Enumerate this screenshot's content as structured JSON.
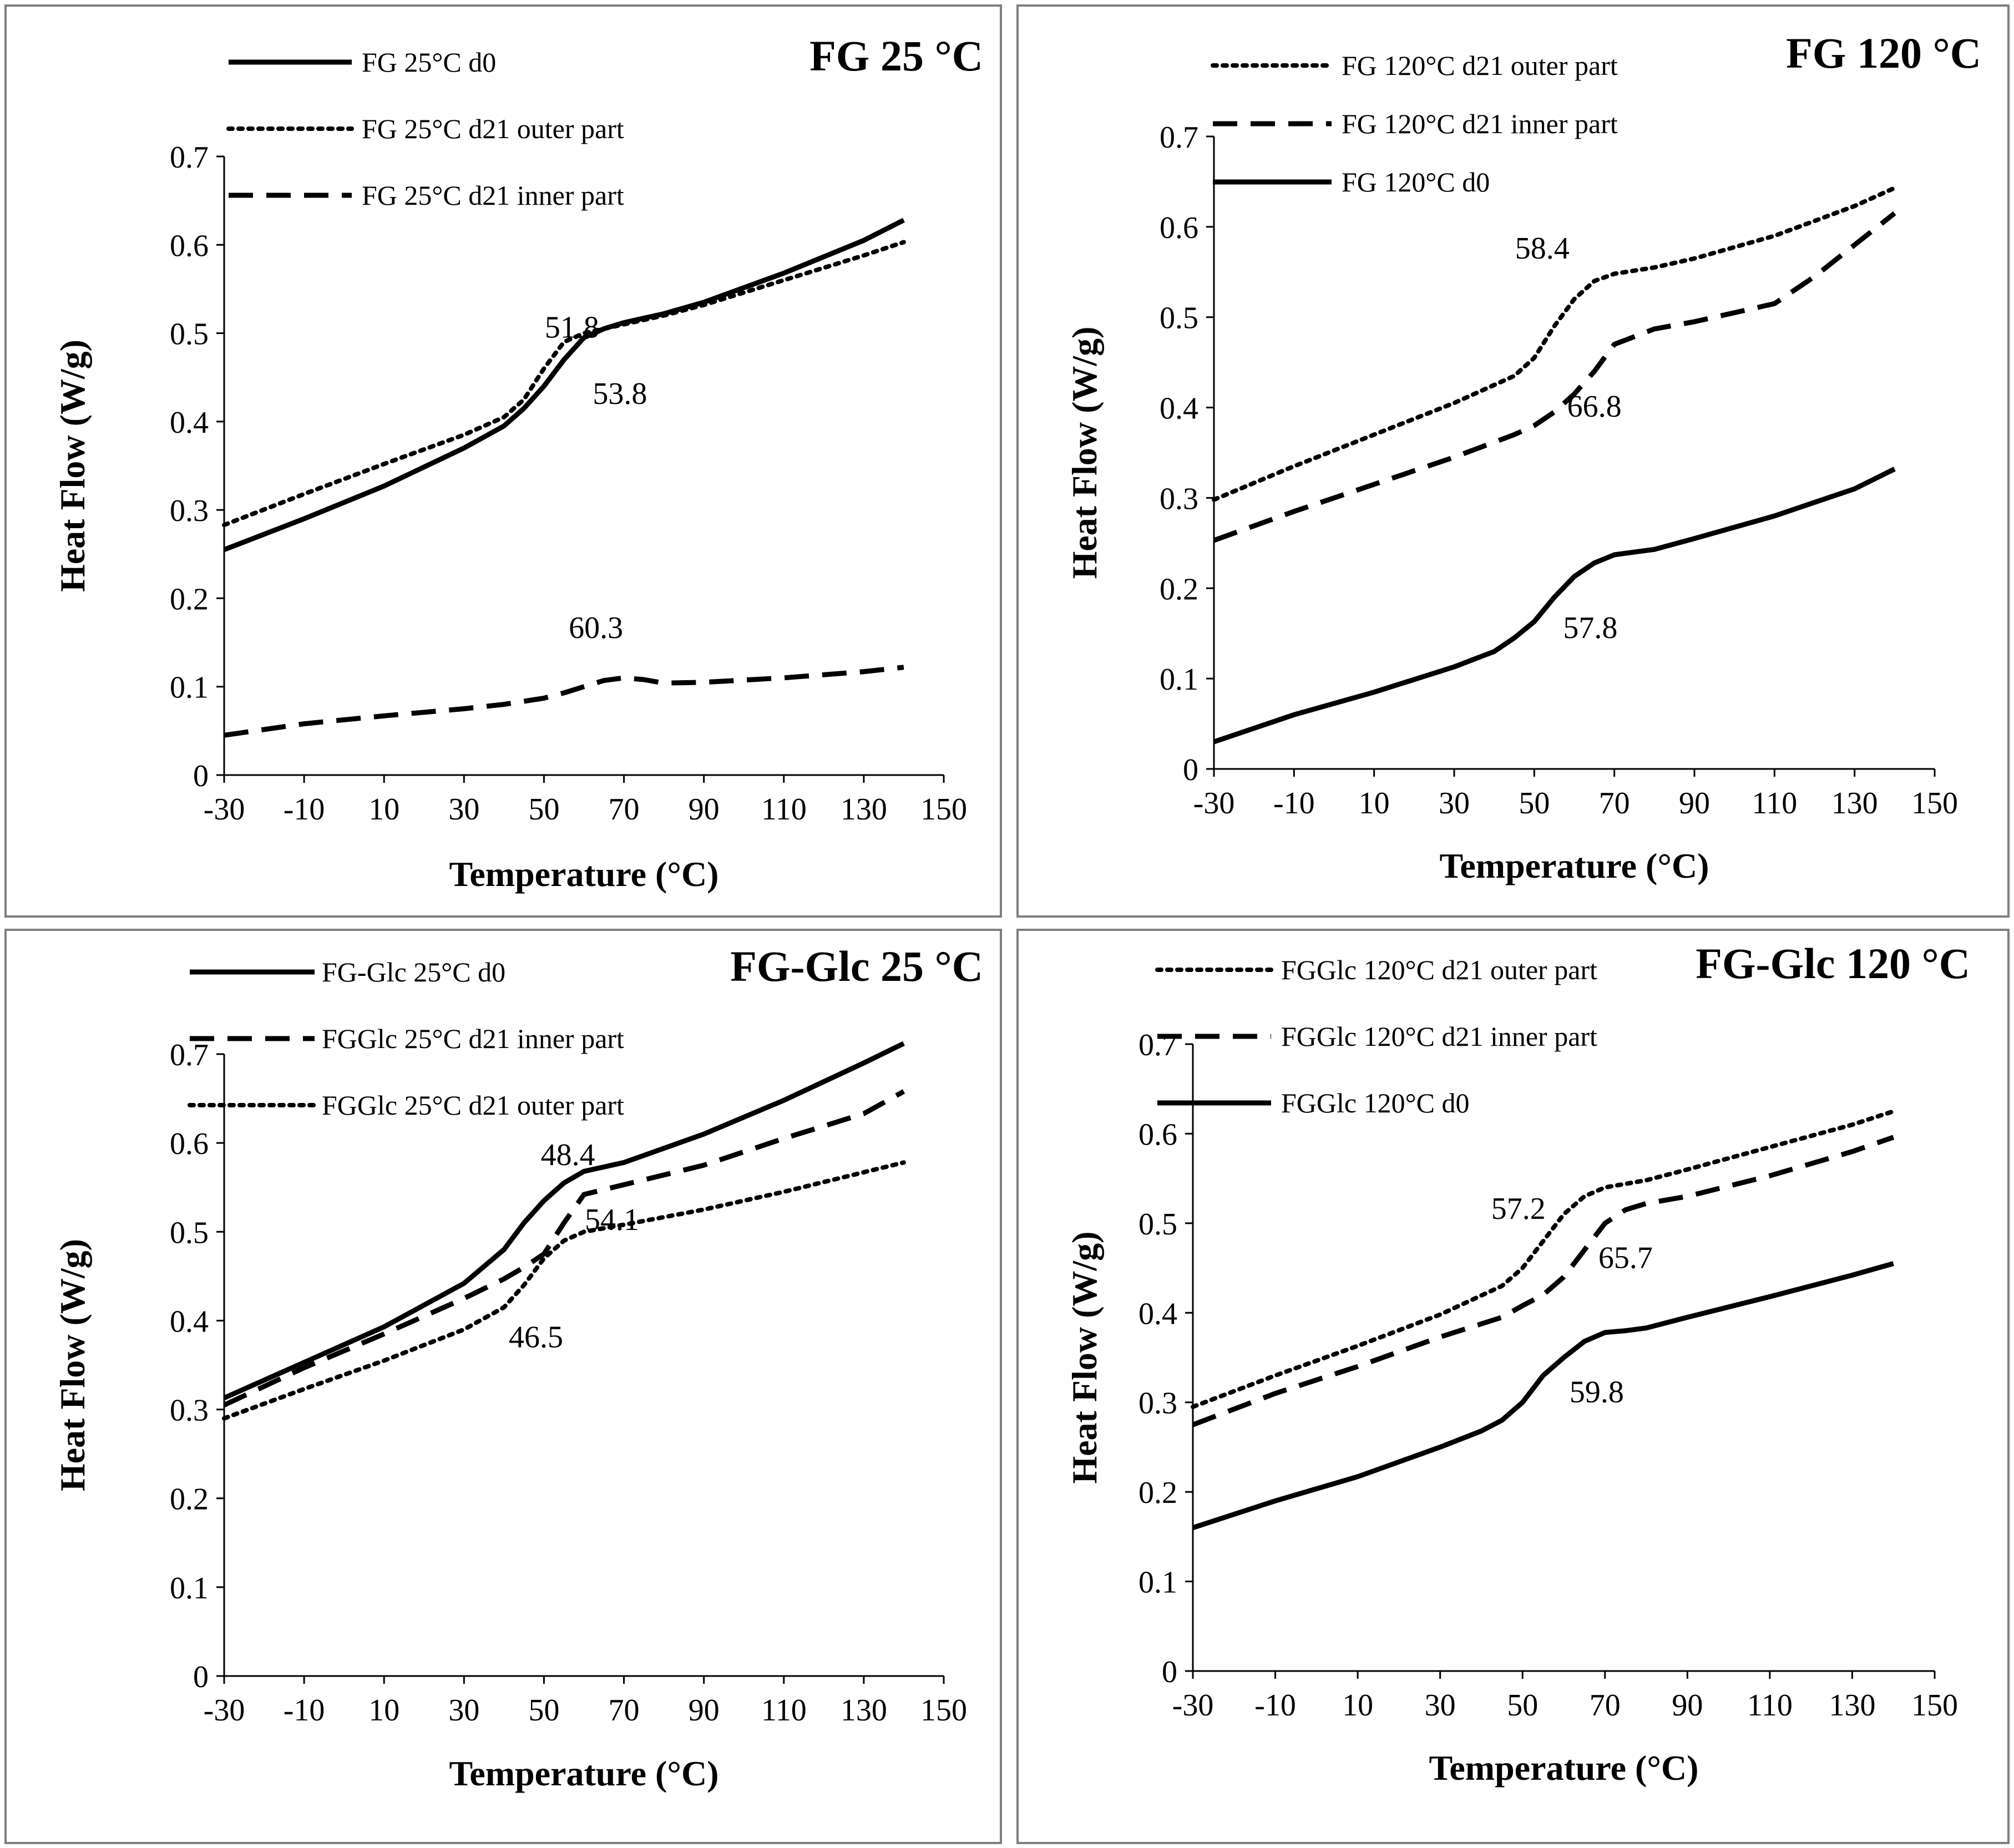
{
  "chart_data": [
    {
      "type": "line",
      "title": "FG 25 °C",
      "xlabel": "Temperature (°C)",
      "ylabel": "Heat Flow (W/g)",
      "xlim": [
        -30,
        150
      ],
      "ylim": [
        0,
        0.7
      ],
      "xticks": [
        -30,
        -10,
        10,
        30,
        50,
        70,
        90,
        110,
        130,
        150
      ],
      "xtick_labels": [
        "-30",
        "-10",
        "10",
        "30",
        "50",
        "70",
        "90",
        "110",
        "130",
        "150"
      ],
      "yticks": [
        0,
        0.1,
        0.2,
        0.3,
        0.4,
        0.5,
        0.6,
        0.7
      ],
      "ytick_labels": [
        "0",
        "0.1",
        "0.2",
        "0.3",
        "0.4",
        "0.5",
        "0.6",
        "0.7"
      ],
      "series": [
        {
          "name": "FG 25°C d0",
          "style": "solid",
          "x": [
            -30,
            -10,
            10,
            30,
            40,
            45,
            50,
            55,
            60,
            65,
            70,
            80,
            90,
            110,
            130,
            140
          ],
          "y": [
            0.255,
            0.29,
            0.327,
            0.37,
            0.395,
            0.415,
            0.44,
            0.47,
            0.495,
            0.505,
            0.512,
            0.522,
            0.535,
            0.568,
            0.605,
            0.628
          ]
        },
        {
          "name": "FG 25°C d21 outer part",
          "style": "dotted",
          "x": [
            -30,
            -10,
            10,
            30,
            40,
            45,
            50,
            55,
            60,
            70,
            80,
            90,
            110,
            130,
            140
          ],
          "y": [
            0.283,
            0.318,
            0.352,
            0.385,
            0.405,
            0.425,
            0.46,
            0.49,
            0.5,
            0.51,
            0.52,
            0.532,
            0.56,
            0.588,
            0.603
          ]
        },
        {
          "name": "FG 25°C d21 inner part",
          "style": "dashed",
          "x": [
            -30,
            -10,
            10,
            30,
            40,
            50,
            55,
            60,
            65,
            70,
            75,
            80,
            90,
            110,
            130,
            140
          ],
          "y": [
            0.045,
            0.058,
            0.067,
            0.075,
            0.08,
            0.087,
            0.093,
            0.1,
            0.107,
            0.11,
            0.108,
            0.104,
            0.105,
            0.11,
            0.117,
            0.122
          ]
        }
      ],
      "annotations": [
        {
          "text": "51.8",
          "x": 57,
          "y": 0.495
        },
        {
          "text": "53.8",
          "x": 69,
          "y": 0.42
        },
        {
          "text": "60.3",
          "x": 63,
          "y": 0.155
        }
      ]
    },
    {
      "type": "line",
      "title": "FG 120 °C",
      "xlabel": "Temperature (°C)",
      "ylabel": "Heat Flow (W/g)",
      "xlim": [
        -30,
        150
      ],
      "ylim": [
        0,
        0.7
      ],
      "xticks": [
        -30,
        -10,
        10,
        30,
        50,
        70,
        90,
        110,
        130,
        150
      ],
      "xtick_labels": [
        "-30",
        "-10",
        "10",
        "30",
        "50",
        "70",
        "90",
        "110",
        "130",
        "150"
      ],
      "yticks": [
        0,
        0.1,
        0.2,
        0.3,
        0.4,
        0.5,
        0.6,
        0.7
      ],
      "ytick_labels": [
        "0",
        "0.1",
        "0.2",
        "0.3",
        "0.4",
        "0.5",
        "0.6",
        "0.7"
      ],
      "series": [
        {
          "name": "FG 120°C d21 outer part",
          "style": "dotted",
          "x": [
            -30,
            -10,
            10,
            30,
            45,
            50,
            55,
            60,
            65,
            70,
            80,
            90,
            110,
            130,
            140
          ],
          "y": [
            0.298,
            0.335,
            0.37,
            0.405,
            0.435,
            0.455,
            0.49,
            0.52,
            0.54,
            0.548,
            0.555,
            0.565,
            0.59,
            0.623,
            0.643
          ]
        },
        {
          "name": "FG 120°C d21 inner part",
          "style": "dashed",
          "x": [
            -30,
            -10,
            10,
            30,
            45,
            50,
            55,
            60,
            65,
            70,
            80,
            90,
            100,
            110,
            120,
            130,
            140
          ],
          "y": [
            0.253,
            0.285,
            0.315,
            0.345,
            0.37,
            0.38,
            0.395,
            0.415,
            0.44,
            0.47,
            0.487,
            0.495,
            0.505,
            0.515,
            0.545,
            0.58,
            0.615
          ]
        },
        {
          "name": "FG 120°C d0",
          "style": "solid",
          "x": [
            -30,
            -10,
            10,
            30,
            40,
            45,
            50,
            55,
            60,
            65,
            70,
            75,
            80,
            90,
            110,
            130,
            140
          ],
          "y": [
            0.03,
            0.06,
            0.085,
            0.113,
            0.13,
            0.145,
            0.163,
            0.19,
            0.213,
            0.228,
            0.237,
            0.24,
            0.243,
            0.255,
            0.28,
            0.31,
            0.332
          ]
        }
      ],
      "annotations": [
        {
          "text": "58.4",
          "x": 52,
          "y": 0.565
        },
        {
          "text": "66.8",
          "x": 65,
          "y": 0.39
        },
        {
          "text": "57.8",
          "x": 64,
          "y": 0.145
        }
      ]
    },
    {
      "type": "line",
      "title": "FG-Glc 25 °C",
      "xlabel": "Temperature (°C)",
      "ylabel": "Heat Flow (W/g)",
      "xlim": [
        -30,
        150
      ],
      "ylim": [
        0,
        0.7
      ],
      "xticks": [
        -30,
        -10,
        10,
        30,
        50,
        70,
        90,
        110,
        130,
        150
      ],
      "xtick_labels": [
        "-30",
        "-10",
        "10",
        "30",
        "50",
        "70",
        "90",
        "110",
        "130",
        "150"
      ],
      "yticks": [
        0,
        0.1,
        0.2,
        0.3,
        0.4,
        0.5,
        0.6,
        0.7
      ],
      "ytick_labels": [
        "0",
        "0.1",
        "0.2",
        "0.3",
        "0.4",
        "0.5",
        "0.6",
        "0.7"
      ],
      "series": [
        {
          "name": "FG-Glc 25°C d0",
          "style": "solid",
          "x": [
            -30,
            -10,
            10,
            30,
            40,
            45,
            50,
            55,
            60,
            70,
            90,
            110,
            130,
            140
          ],
          "y": [
            0.313,
            0.353,
            0.393,
            0.442,
            0.48,
            0.51,
            0.535,
            0.555,
            0.568,
            0.578,
            0.61,
            0.648,
            0.69,
            0.712
          ]
        },
        {
          "name": "FGGlc 25°C d21 inner part",
          "style": "dashed",
          "x": [
            -30,
            -10,
            10,
            30,
            40,
            45,
            50,
            55,
            60,
            70,
            90,
            110,
            130,
            140
          ],
          "y": [
            0.305,
            0.347,
            0.385,
            0.425,
            0.447,
            0.46,
            0.475,
            0.51,
            0.542,
            0.553,
            0.575,
            0.605,
            0.633,
            0.658
          ]
        },
        {
          "name": "FGGlc 25°C d21 outer part",
          "style": "dotted",
          "x": [
            -30,
            -10,
            10,
            30,
            40,
            45,
            50,
            55,
            60,
            70,
            90,
            110,
            130,
            140
          ],
          "y": [
            0.29,
            0.323,
            0.355,
            0.39,
            0.415,
            0.44,
            0.47,
            0.49,
            0.5,
            0.508,
            0.525,
            0.545,
            0.567,
            0.578
          ]
        }
      ],
      "annotations": [
        {
          "text": "48.4",
          "x": 56,
          "y": 0.575
        },
        {
          "text": "54.1",
          "x": 67,
          "y": 0.502
        },
        {
          "text": "46.5",
          "x": 48,
          "y": 0.37
        }
      ]
    },
    {
      "type": "line",
      "title": "FG-Glc 120 °C",
      "xlabel": "Temperature (°C)",
      "ylabel": "Heat Flow (W/g)",
      "xlim": [
        -30,
        150
      ],
      "ylim": [
        0,
        0.7
      ],
      "xticks": [
        -30,
        -10,
        10,
        30,
        50,
        70,
        90,
        110,
        130,
        150
      ],
      "xtick_labels": [
        "-30",
        "-10",
        "10",
        "30",
        "50",
        "70",
        "90",
        "110",
        "130",
        "150"
      ],
      "yticks": [
        0,
        0.1,
        0.2,
        0.3,
        0.4,
        0.5,
        0.6,
        0.7
      ],
      "ytick_labels": [
        "0",
        "0.1",
        "0.2",
        "0.3",
        "0.4",
        "0.5",
        "0.6",
        "0.7"
      ],
      "series": [
        {
          "name": "FGGlc 120°C d21 outer part",
          "style": "dotted",
          "x": [
            -30,
            -10,
            10,
            30,
            45,
            50,
            55,
            60,
            65,
            70,
            80,
            90,
            110,
            130,
            140
          ],
          "y": [
            0.295,
            0.33,
            0.363,
            0.398,
            0.43,
            0.45,
            0.48,
            0.51,
            0.53,
            0.54,
            0.548,
            0.56,
            0.585,
            0.61,
            0.625
          ]
        },
        {
          "name": "FGGlc 120°C d21 inner part",
          "style": "dashed",
          "x": [
            -30,
            -10,
            10,
            30,
            45,
            50,
            55,
            60,
            65,
            70,
            75,
            80,
            90,
            110,
            130,
            140
          ],
          "y": [
            0.275,
            0.31,
            0.34,
            0.373,
            0.395,
            0.408,
            0.42,
            0.44,
            0.47,
            0.5,
            0.515,
            0.522,
            0.53,
            0.553,
            0.58,
            0.596
          ]
        },
        {
          "name": "FGGlc 120°C d0",
          "style": "solid",
          "x": [
            -30,
            -10,
            10,
            30,
            40,
            45,
            50,
            55,
            60,
            65,
            70,
            75,
            80,
            90,
            110,
            130,
            140
          ],
          "y": [
            0.16,
            0.19,
            0.217,
            0.25,
            0.268,
            0.28,
            0.3,
            0.33,
            0.35,
            0.368,
            0.378,
            0.38,
            0.383,
            0.395,
            0.418,
            0.442,
            0.455
          ]
        }
      ],
      "annotations": [
        {
          "text": "57.2",
          "x": 49,
          "y": 0.505
        },
        {
          "text": "65.7",
          "x": 75,
          "y": 0.45
        },
        {
          "text": "59.8",
          "x": 68,
          "y": 0.3
        }
      ]
    }
  ]
}
